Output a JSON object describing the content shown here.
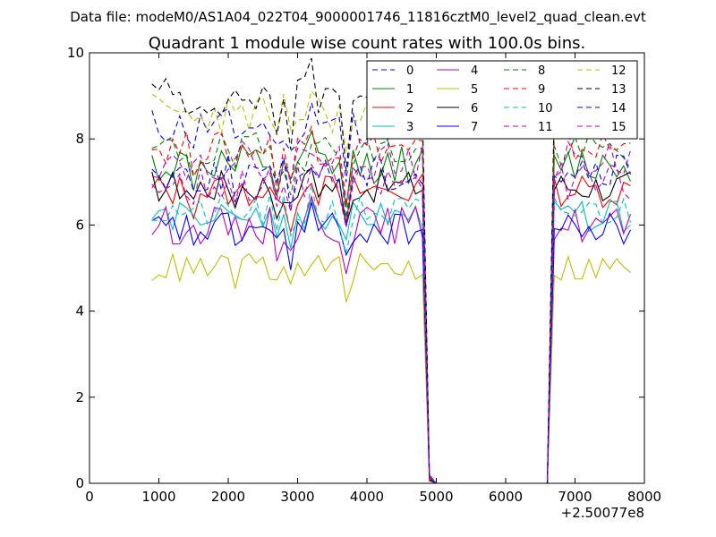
{
  "header": {
    "data_file_label": "Data file: modeM0/AS1A04_022T04_9000001746_11816cztM0_level2_quad_clean.evt"
  },
  "chart_data": {
    "type": "line",
    "title": "Quadrant 1 module wise count rates with 100.0s bins.",
    "xlabel": "",
    "ylabel": "",
    "x_offset_label": "+2.50077e8",
    "xlim": [
      0,
      8000
    ],
    "ylim": [
      0,
      10
    ],
    "x_ticks": [
      0,
      1000,
      2000,
      3000,
      4000,
      5000,
      6000,
      7000,
      8000
    ],
    "x_tick_labels": [
      "0",
      "1000",
      "2000",
      "3000",
      "4000",
      "5000",
      "6000",
      "7000",
      "8000"
    ],
    "y_ticks": [
      0,
      2,
      4,
      6,
      8,
      10
    ],
    "y_tick_labels": [
      "0",
      "2",
      "4",
      "6",
      "8",
      "10"
    ],
    "legend_position": "top-right",
    "legend_columns": 4,
    "x_segments": {
      "segment1_start": 900,
      "segment1_end": 4800,
      "gap_start": 4900,
      "gap_end": 6600,
      "segment2_start": 6700,
      "segment2_end": 7800,
      "step": 100
    },
    "series": [
      {
        "name": "0",
        "color": "#0000ff",
        "dashed": true,
        "base": 8.3,
        "amp": 0.45,
        "seed": 11
      },
      {
        "name": "1",
        "color": "#008000",
        "dashed": false,
        "base": 7.4,
        "amp": 0.45,
        "seed": 12
      },
      {
        "name": "2",
        "color": "#ff0000",
        "dashed": false,
        "base": 6.8,
        "amp": 0.4,
        "seed": 13
      },
      {
        "name": "3",
        "color": "#00bfbf",
        "dashed": false,
        "base": 6.2,
        "amp": 0.35,
        "seed": 14
      },
      {
        "name": "4",
        "color": "#bf00bf",
        "dashed": false,
        "base": 6.0,
        "amp": 0.45,
        "seed": 15
      },
      {
        "name": "5",
        "color": "#bfbf00",
        "dashed": false,
        "base": 5.0,
        "amp": 0.35,
        "seed": 16
      },
      {
        "name": "6",
        "color": "#000000",
        "dashed": false,
        "base": 6.9,
        "amp": 0.4,
        "seed": 17
      },
      {
        "name": "7",
        "color": "#0000ff",
        "dashed": false,
        "base": 5.9,
        "amp": 0.4,
        "seed": 18
      },
      {
        "name": "8",
        "color": "#008000",
        "dashed": true,
        "base": 7.7,
        "amp": 0.45,
        "seed": 19
      },
      {
        "name": "9",
        "color": "#ff0000",
        "dashed": true,
        "base": 7.8,
        "amp": 0.4,
        "seed": 20
      },
      {
        "name": "10",
        "color": "#00bfbf",
        "dashed": true,
        "base": 6.3,
        "amp": 0.4,
        "seed": 21
      },
      {
        "name": "11",
        "color": "#bf00bf",
        "dashed": true,
        "base": 7.5,
        "amp": 0.45,
        "seed": 22
      },
      {
        "name": "12",
        "color": "#bfbf00",
        "dashed": true,
        "base": 8.6,
        "amp": 0.5,
        "seed": 23
      },
      {
        "name": "13",
        "color": "#000000",
        "dashed": true,
        "base": 9.0,
        "amp": 0.5,
        "seed": 24
      },
      {
        "name": "14",
        "color": "#0000ff",
        "dashed": true,
        "base": 7.2,
        "amp": 0.45,
        "seed": 25
      },
      {
        "name": "15",
        "color": "#bf00bf",
        "dashed": true,
        "base": 7.0,
        "amp": 0.45,
        "seed": 26
      }
    ]
  }
}
